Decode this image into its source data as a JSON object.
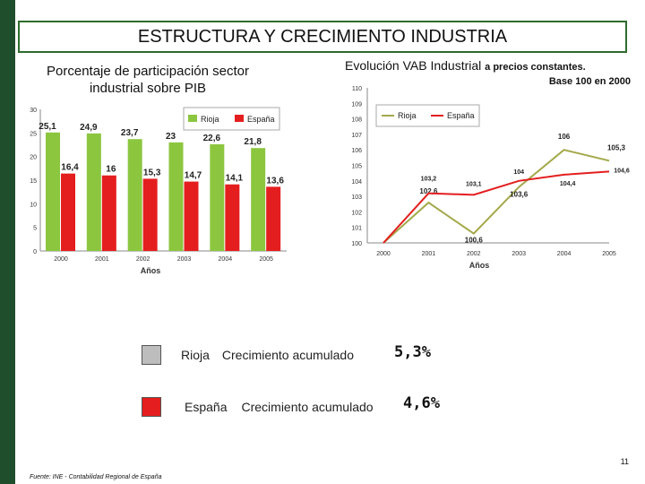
{
  "title": "ESTRUCTURA Y CRECIMIENTO INDUSTRIA",
  "left_subtitle": "Porcentaje de participación sector industrial sobre PIB",
  "right_subtitle_main": "Evolución VAB Industrial",
  "right_subtitle_small": "a precios constantes.",
  "base_note": "Base 100 en 2000",
  "chart_data": [
    {
      "type": "bar",
      "title": "Porcentaje de participación sector industrial sobre PIB",
      "xlabel": "Años",
      "ylabel": "",
      "ylim": [
        0,
        30
      ],
      "yticks": [
        "0",
        "5",
        "10",
        "15",
        "20",
        "25",
        "30"
      ],
      "categories": [
        "2000",
        "2001",
        "2002",
        "2003",
        "2004",
        "2005"
      ],
      "series": [
        {
          "name": "Rioja",
          "color": "#8cc63f",
          "values": [
            25.1,
            24.9,
            23.7,
            23,
            22.6,
            21.8
          ],
          "labels": [
            "25,1",
            "24,9",
            "23,7",
            "23",
            "22,6",
            "21,8"
          ]
        },
        {
          "name": "España",
          "color": "#e41e1e",
          "values": [
            16.4,
            16,
            15.3,
            14.7,
            14.1,
            13.6
          ],
          "labels": [
            "16,4",
            "16",
            "15,3",
            "14,7",
            "14,1",
            "13,6"
          ]
        }
      ],
      "legend": [
        "Rioja",
        "España"
      ]
    },
    {
      "type": "line",
      "title": "Evolución VAB Industrial a precios constantes. Base 100 en 2000",
      "xlabel": "Años",
      "ylabel": "",
      "ylim": [
        100,
        110
      ],
      "yticks": [
        "100",
        "101",
        "102",
        "103",
        "104",
        "105",
        "106",
        "107",
        "108",
        "109",
        "110"
      ],
      "categories": [
        "2000",
        "2001",
        "2002",
        "2003",
        "2004",
        "2005"
      ],
      "series": [
        {
          "name": "Rioja",
          "color": "#a3a84a",
          "values": [
            100,
            102.6,
            100.6,
            103.6,
            106,
            105.3
          ],
          "labels": [
            "",
            "102,6",
            "100,6",
            "103,6",
            "106",
            "105,3"
          ]
        },
        {
          "name": "España",
          "color": "#e41e1e",
          "values": [
            100,
            103.2,
            103.1,
            104,
            104.4,
            104.6
          ],
          "labels": [
            "",
            "103,2",
            "103,1",
            "104",
            "104,4",
            "104,6"
          ]
        }
      ],
      "legend": [
        "Rioja",
        "España"
      ]
    }
  ],
  "growth": {
    "rioja": {
      "name": "Rioja",
      "label": "Crecimiento acumulado",
      "value": "5,3%",
      "swatch_color": "#bdbdbd"
    },
    "espana": {
      "name": "España",
      "label": "Crecimiento acumulado",
      "value": "4,6%",
      "swatch_color": "#e41e1e"
    }
  },
  "page_number": "11",
  "source": "Fuente: INE - Contabilidad Regional de España"
}
